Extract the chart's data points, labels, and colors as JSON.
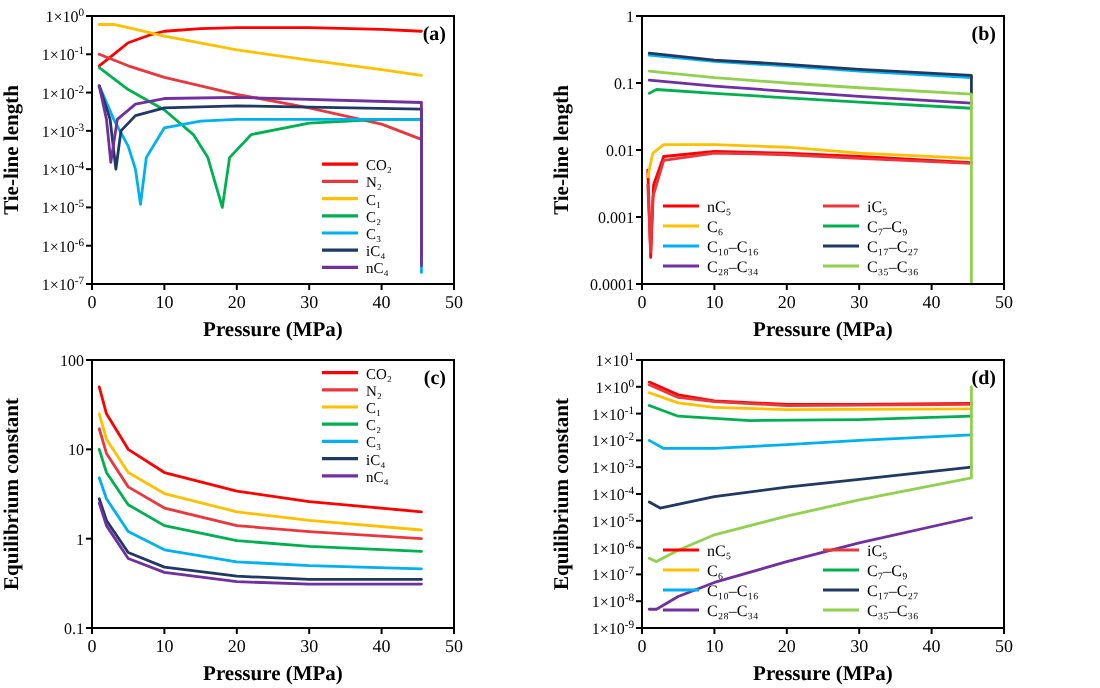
{
  "chart_data": [
    {
      "type": "line",
      "xlabel": "Pressure (MPa)",
      "ylabel": "Tie-line length",
      "annotations": [
        "(a)"
      ],
      "log": true,
      "grid": false,
      "legend": "bottom right",
      "xlim": [
        0,
        50
      ],
      "xticks": [
        0,
        10,
        20,
        30,
        40,
        50
      ],
      "ylim": [
        1e-07,
        1
      ],
      "yticks": [
        {
          "value": 1,
          "label": "1×10$^{0}$"
        },
        {
          "value": 0.1,
          "label": "1×10$^{-1}$"
        },
        {
          "value": 0.01,
          "label": "1×10$^{-2}$"
        },
        {
          "value": 0.001,
          "label": "1×10$^{-3}$"
        },
        {
          "value": 0.0001,
          "label": "1×10$^{-4}$"
        },
        {
          "value": 1e-05,
          "label": "1×10$^{-5}$"
        },
        {
          "value": 1e-06,
          "label": "1×10$^{-6}$"
        },
        {
          "value": 1e-07,
          "label": "1×10$^{-7}$"
        }
      ],
      "series": [
        {
          "name": "CO₂",
          "color": "#ff0000",
          "x": [
            1,
            3,
            5,
            8,
            10,
            15,
            20,
            30,
            40,
            45.5
          ],
          "values": [
            0.05,
            0.1,
            0.2,
            0.32,
            0.4,
            0.47,
            0.5,
            0.5,
            0.45,
            0.4
          ]
        },
        {
          "name": "N₂",
          "color": "#e8383d",
          "x": [
            1,
            5,
            10,
            20,
            30,
            40,
            45.5
          ],
          "values": [
            0.1,
            0.05,
            0.025,
            0.009,
            0.004,
            0.0015,
            0.0006
          ]
        },
        {
          "name": "C₁",
          "color": "#ffc000",
          "x": [
            1,
            3,
            5,
            10,
            20,
            30,
            40,
            45.5
          ],
          "values": [
            0.6,
            0.6,
            0.5,
            0.3,
            0.13,
            0.07,
            0.04,
            0.028
          ]
        },
        {
          "name": "C₂",
          "color": "#00b050",
          "x": [
            1,
            5,
            10,
            14,
            16,
            18,
            19,
            22,
            30,
            40,
            45.5
          ],
          "values": [
            0.045,
            0.012,
            0.0035,
            0.0008,
            0.0002,
            1e-05,
            0.0002,
            0.0008,
            0.0016,
            0.002,
            0.002
          ]
        },
        {
          "name": "C₃",
          "color": "#00b0f0",
          "x": [
            1,
            3,
            5,
            6,
            6.7,
            7.5,
            10,
            15,
            20,
            45.5,
            45.5
          ],
          "values": [
            0.015,
            0.002,
            0.0004,
            0.0001,
            1.2e-05,
            0.0002,
            0.0012,
            0.0018,
            0.002,
            0.002,
            2e-07
          ]
        },
        {
          "name": "iC₄",
          "color": "#203864",
          "x": [
            1,
            2.5,
            3.3,
            4,
            6,
            10,
            20,
            45.5,
            45.5
          ],
          "values": [
            0.015,
            0.002,
            0.0001,
            0.001,
            0.0025,
            0.004,
            0.0045,
            0.0037,
            5e-07
          ]
        },
        {
          "name": "nC₄",
          "color": "#7030a0",
          "x": [
            1,
            2,
            2.6,
            3.5,
            6,
            10,
            20,
            45.5,
            45.5
          ],
          "values": [
            0.015,
            0.002,
            0.00015,
            0.002,
            0.005,
            0.007,
            0.0075,
            0.0055,
            3e-07
          ]
        }
      ]
    },
    {
      "type": "line",
      "xlabel": "Pressure (MPa)",
      "ylabel": "Tie-line length",
      "annotations": [
        "(b)"
      ],
      "log": true,
      "grid": false,
      "legend": "bottom",
      "xlim": [
        0,
        50
      ],
      "xticks": [
        0,
        10,
        20,
        30,
        40,
        50
      ],
      "ylim": [
        0.0001,
        1
      ],
      "yticks": [
        0.0001,
        0.001,
        0.01,
        0.1,
        1
      ],
      "series": [
        {
          "name": "nC₅",
          "color": "#ff0000",
          "x": [
            0.8,
            1.2,
            1.6,
            3,
            10,
            20,
            30,
            45.5
          ],
          "values": [
            0.005,
            0.00025,
            0.003,
            0.008,
            0.0095,
            0.009,
            0.008,
            0.0065
          ]
        },
        {
          "name": "iC₅",
          "color": "#e8383d",
          "x": [
            0.8,
            1.2,
            1.5,
            3,
            10,
            20,
            30,
            45.5
          ],
          "values": [
            0.003,
            0.0003,
            0.002,
            0.007,
            0.009,
            0.0085,
            0.0075,
            0.0063
          ]
        },
        {
          "name": "C₆",
          "color": "#ffc000",
          "x": [
            0.8,
            1.5,
            3,
            10,
            20,
            30,
            45.5
          ],
          "values": [
            0.004,
            0.009,
            0.012,
            0.012,
            0.011,
            0.009,
            0.0075
          ]
        },
        {
          "name": "C₇–C₉",
          "color": "#00b050",
          "x": [
            1,
            2,
            10,
            20,
            30,
            45.5
          ],
          "values": [
            0.07,
            0.08,
            0.07,
            0.06,
            0.052,
            0.042
          ]
        },
        {
          "name": "C₁₀–C₁₆",
          "color": "#00b0f0",
          "x": [
            1,
            10,
            20,
            30,
            45.5
          ],
          "values": [
            0.26,
            0.21,
            0.18,
            0.15,
            0.12
          ]
        },
        {
          "name": "C₁₇–C₂₇",
          "color": "#203864",
          "x": [
            1,
            10,
            20,
            30,
            45.5,
            45.5
          ],
          "values": [
            0.28,
            0.22,
            0.19,
            0.16,
            0.13,
            0.07
          ]
        },
        {
          "name": "C₂₈–C₃₄",
          "color": "#7030a0",
          "x": [
            1,
            10,
            20,
            30,
            45.5
          ],
          "values": [
            0.11,
            0.09,
            0.075,
            0.063,
            0.05
          ]
        },
        {
          "name": "C₃₅–C₃₆",
          "color": "#92d050",
          "x": [
            1,
            10,
            20,
            30,
            45.5,
            45.5
          ],
          "values": [
            0.15,
            0.12,
            0.1,
            0.085,
            0.068,
            0.0001
          ]
        }
      ]
    },
    {
      "type": "line",
      "xlabel": "Pressure (MPa)",
      "ylabel": "Equilibrium constant",
      "annotations": [
        "(c)"
      ],
      "log": true,
      "grid": false,
      "legend": "top right",
      "xlim": [
        0,
        50
      ],
      "xticks": [
        0,
        10,
        20,
        30,
        40,
        50
      ],
      "ylim": [
        0.1,
        100
      ],
      "yticks": [
        0.1,
        1,
        10,
        100
      ],
      "series": [
        {
          "name": "CO₂",
          "color": "#ff0000",
          "x": [
            1,
            2,
            5,
            10,
            20,
            30,
            45.5
          ],
          "values": [
            50,
            25,
            10,
            5.5,
            3.4,
            2.6,
            2
          ]
        },
        {
          "name": "N₂",
          "color": "#e8383d",
          "x": [
            1,
            2,
            5,
            10,
            20,
            30,
            45.5
          ],
          "values": [
            17,
            9,
            3.8,
            2.2,
            1.4,
            1.2,
            1
          ]
        },
        {
          "name": "C₁",
          "color": "#ffc000",
          "x": [
            1,
            2,
            5,
            10,
            20,
            30,
            45.5
          ],
          "values": [
            25,
            13,
            5.5,
            3.2,
            2,
            1.6,
            1.25
          ]
        },
        {
          "name": "C₂",
          "color": "#00b050",
          "x": [
            1,
            2,
            5,
            10,
            20,
            30,
            45.5
          ],
          "values": [
            10,
            5.5,
            2.4,
            1.4,
            0.95,
            0.82,
            0.72
          ]
        },
        {
          "name": "C₃",
          "color": "#00b0f0",
          "x": [
            1,
            2,
            5,
            10,
            20,
            30,
            45.5
          ],
          "values": [
            4.8,
            2.8,
            1.2,
            0.75,
            0.55,
            0.5,
            0.46
          ]
        },
        {
          "name": "iC₄",
          "color": "#203864",
          "x": [
            1,
            2,
            5,
            10,
            20,
            30,
            45.5
          ],
          "values": [
            2.8,
            1.6,
            0.7,
            0.48,
            0.38,
            0.35,
            0.35
          ]
        },
        {
          "name": "nC₄",
          "color": "#7030a0",
          "x": [
            1,
            2,
            5,
            10,
            20,
            30,
            45.5
          ],
          "values": [
            2.5,
            1.4,
            0.6,
            0.42,
            0.33,
            0.31,
            0.31
          ]
        }
      ]
    },
    {
      "type": "line",
      "xlabel": "Pressure (MPa)",
      "ylabel": "Equilibrium constant",
      "annotations": [
        "(d)"
      ],
      "log": true,
      "grid": false,
      "legend": "bottom",
      "xlim": [
        0,
        50
      ],
      "xticks": [
        0,
        10,
        20,
        30,
        40,
        50
      ],
      "ylim": [
        1e-09,
        10
      ],
      "yticks": [
        {
          "value": 10,
          "label": "1×10$^{1}$"
        },
        {
          "value": 1,
          "label": "1×10$^{0}$"
        },
        {
          "value": 0.1,
          "label": "1×10$^{-1}$"
        },
        {
          "value": 0.01,
          "label": "1×10$^{-2}$"
        },
        {
          "value": 0.001,
          "label": "1×10$^{-3}$"
        },
        {
          "value": 0.0001,
          "label": "1×10$^{-4}$"
        },
        {
          "value": 1e-05,
          "label": "1×10$^{-5}$"
        },
        {
          "value": 1e-06,
          "label": "1×10$^{-6}$"
        },
        {
          "value": 1e-07,
          "label": "1×10$^{-7}$"
        },
        {
          "value": 1e-08,
          "label": "1×10$^{-8}$"
        },
        {
          "value": 1e-09,
          "label": "1×10$^{-9}$"
        }
      ],
      "series": [
        {
          "name": "nC₅",
          "color": "#ff0000",
          "x": [
            1,
            5,
            10,
            20,
            30,
            45.5
          ],
          "values": [
            1.5,
            0.5,
            0.3,
            0.22,
            0.22,
            0.24
          ]
        },
        {
          "name": "iC₅",
          "color": "#e8383d",
          "x": [
            1,
            5,
            10,
            20,
            45.5
          ],
          "values": [
            1.2,
            0.4,
            0.28,
            0.2,
            0.22
          ]
        },
        {
          "name": "C₆",
          "color": "#ffc000",
          "x": [
            1,
            5,
            10,
            20,
            45.5
          ],
          "values": [
            0.6,
            0.25,
            0.17,
            0.14,
            0.15
          ]
        },
        {
          "name": "C₇–C₉",
          "color": "#00b050",
          "x": [
            1,
            5,
            15,
            30,
            45.5
          ],
          "values": [
            0.2,
            0.08,
            0.055,
            0.06,
            0.08
          ]
        },
        {
          "name": "C₁₀–C₁₆",
          "color": "#00b0f0",
          "x": [
            1,
            3,
            10,
            20,
            30,
            45.5
          ],
          "values": [
            0.01,
            0.005,
            0.005,
            0.007,
            0.01,
            0.016
          ]
        },
        {
          "name": "C₁₇–C₂₇",
          "color": "#203864",
          "x": [
            1,
            2.5,
            10,
            20,
            30,
            45.5
          ],
          "values": [
            5e-05,
            3e-05,
            8e-05,
            0.00018,
            0.00035,
            0.001
          ]
        },
        {
          "name": "C₂₈–C₃₄",
          "color": "#7030a0",
          "x": [
            1,
            2,
            5,
            10,
            20,
            30,
            45.5
          ],
          "values": [
            5e-09,
            5e-09,
            1.5e-08,
            5e-08,
            3e-07,
            1.5e-06,
            1.3e-05
          ]
        },
        {
          "name": "C₃₅–C₃₆",
          "color": "#92d050",
          "x": [
            1,
            2,
            5,
            10,
            20,
            30,
            45.5,
            45.5
          ],
          "values": [
            4e-07,
            3e-07,
            8e-07,
            3e-06,
            1.5e-05,
            6e-05,
            0.0004,
            1
          ]
        }
      ]
    }
  ]
}
